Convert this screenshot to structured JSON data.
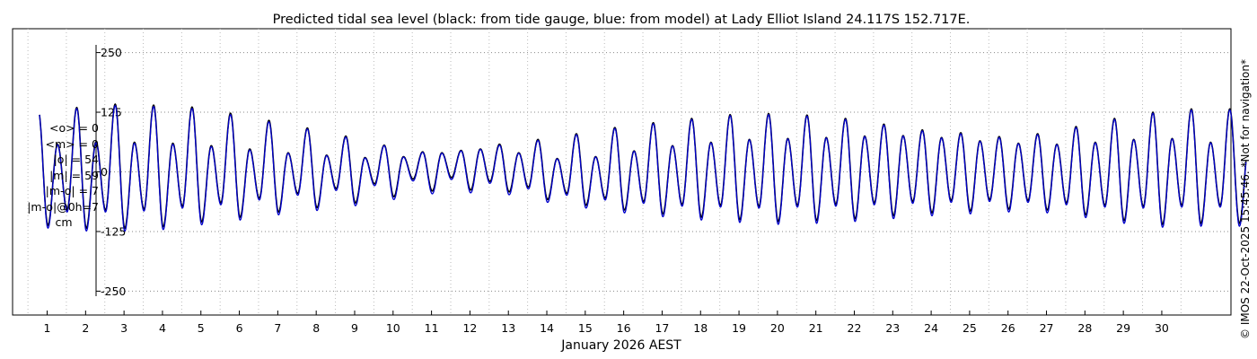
{
  "chart_data": {
    "type": "line",
    "title": "Predicted tidal sea level (black: from tide gauge, blue: from model) at Lady Elliot Island 24.117S 152.717E.",
    "xlabel": "January 2026 AEST",
    "ylabel": "",
    "ylim": [
      -300,
      300
    ],
    "yticks": [
      250,
      125,
      0,
      -125,
      -250
    ],
    "ytick_labels": [
      "250",
      "125",
      "0",
      "-125",
      "-250"
    ],
    "xlim": [
      0.1,
      31.8
    ],
    "xticks": [
      1,
      2,
      3,
      4,
      5,
      6,
      7,
      8,
      9,
      10,
      11,
      12,
      13,
      14,
      15,
      16,
      17,
      18,
      19,
      20,
      21,
      22,
      23,
      24,
      25,
      26,
      27,
      28,
      29,
      30
    ],
    "xtick_labels": [
      "1",
      "2",
      "3",
      "4",
      "5",
      "6",
      "7",
      "8",
      "9",
      "10",
      "11",
      "12",
      "13",
      "14",
      "15",
      "16",
      "17",
      "18",
      "19",
      "20",
      "21",
      "22",
      "23",
      "24",
      "25",
      "26",
      "27",
      "28",
      "29",
      "30"
    ],
    "grid": true,
    "series": [
      {
        "name": "tide gauge",
        "color": "#000000",
        "daily_extremes": {
          "high_major": [
            128,
            135,
            142,
            140,
            136,
            123,
            108,
            92,
            75,
            56,
            42,
            45,
            58,
            68,
            80,
            93,
            103,
            112,
            120,
            122,
            119,
            112,
            100,
            88,
            82,
            74,
            80,
            95,
            112,
            125,
            132
          ],
          "high_minor": [
            58,
            63,
            62,
            60,
            55,
            48,
            40,
            35,
            30,
            32,
            40,
            48,
            40,
            28,
            32,
            44,
            55,
            62,
            68,
            70,
            72,
            75,
            76,
            72,
            65,
            60,
            58,
            62,
            68,
            70,
            62
          ],
          "low_major": [
            -112,
            -118,
            -118,
            -115,
            -105,
            -95,
            -84,
            -75,
            -65,
            -52,
            -40,
            -38,
            -42,
            -58,
            -70,
            -80,
            -88,
            -95,
            -100,
            -104,
            -102,
            -98,
            -92,
            -86,
            -82,
            -78,
            -80,
            -90,
            -102,
            -110,
            -108
          ],
          "low_minor": [
            -75,
            -80,
            -80,
            -78,
            -72,
            -65,
            -55,
            -45,
            -35,
            -25,
            -15,
            -12,
            -20,
            -32,
            -45,
            -55,
            -62,
            -68,
            -70,
            -72,
            -70,
            -68,
            -65,
            -62,
            -60,
            -58,
            -60,
            -65,
            -70,
            -72,
            -70
          ]
        }
      },
      {
        "name": "model",
        "color": "#0000cc",
        "daily_extremes": {
          "high_major": [
            128,
            133,
            139,
            137,
            133,
            120,
            105,
            90,
            73,
            55,
            41,
            44,
            56,
            66,
            78,
            91,
            101,
            110,
            118,
            120,
            117,
            110,
            98,
            86,
            80,
            72,
            78,
            93,
            110,
            123,
            130
          ],
          "high_minor": [
            57,
            61,
            60,
            58,
            53,
            46,
            39,
            34,
            29,
            31,
            39,
            47,
            39,
            27,
            31,
            43,
            54,
            61,
            67,
            69,
            71,
            74,
            75,
            71,
            64,
            59,
            57,
            61,
            67,
            69,
            61
          ],
          "low_major": [
            -118,
            -124,
            -124,
            -121,
            -111,
            -101,
            -90,
            -81,
            -71,
            -58,
            -46,
            -44,
            -48,
            -64,
            -76,
            -86,
            -94,
            -101,
            -106,
            -110,
            -108,
            -104,
            -98,
            -92,
            -88,
            -84,
            -86,
            -96,
            -108,
            -116,
            -114
          ],
          "low_minor": [
            -79,
            -84,
            -84,
            -82,
            -76,
            -69,
            -59,
            -49,
            -39,
            -29,
            -19,
            -16,
            -24,
            -36,
            -49,
            -59,
            -66,
            -72,
            -74,
            -76,
            -74,
            -72,
            -69,
            -66,
            -64,
            -62,
            -64,
            -69,
            -74,
            -76,
            -74
          ]
        }
      }
    ]
  },
  "stats": {
    "mean_obs": "<o> = 0",
    "mean_model": "<m> = 0",
    "abs_obs": "|o| = 54",
    "abs_model": "|m| = 59",
    "abs_diff": "|m-o| = 7",
    "diff_at_0h": "|m-o|@0h=7",
    "units": "cm"
  },
  "footer": {
    "copyright": "© IMOS 22-Oct-2025 15:45:46. *Not for navigation*"
  },
  "colors": {
    "grid": "#888888",
    "gauge": "#000000",
    "model": "#0000cc"
  }
}
